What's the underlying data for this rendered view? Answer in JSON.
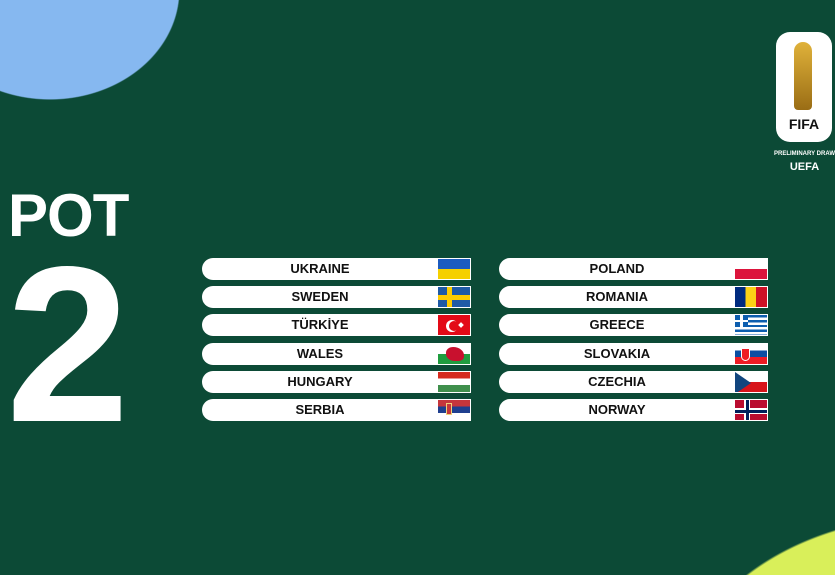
{
  "title": {
    "pot": "POT",
    "number": "2"
  },
  "logo": {
    "brand": "FIFA",
    "subtitle": "PRELIMINARY DRAW",
    "confederation": "UEFA"
  },
  "left_column": [
    {
      "team": "UKRAINE",
      "flag": "ukraine"
    },
    {
      "team": "SWEDEN",
      "flag": "sweden"
    },
    {
      "team": "TÜRKİYE",
      "flag": "turkiye"
    },
    {
      "team": "WALES",
      "flag": "wales"
    },
    {
      "team": "HUNGARY",
      "flag": "hungary"
    },
    {
      "team": "SERBIA",
      "flag": "serbia"
    }
  ],
  "right_column": [
    {
      "team": "POLAND",
      "flag": "poland"
    },
    {
      "team": "ROMANIA",
      "flag": "romania"
    },
    {
      "team": "GREECE",
      "flag": "greece"
    },
    {
      "team": "SLOVAKIA",
      "flag": "slovakia"
    },
    {
      "team": "CZECHIA",
      "flag": "czechia"
    },
    {
      "team": "NORWAY",
      "flag": "norway"
    }
  ],
  "colors": {
    "background": "#0c4a36",
    "accent_blue": "#86b8f0",
    "accent_yellow": "#d9ef5a"
  }
}
